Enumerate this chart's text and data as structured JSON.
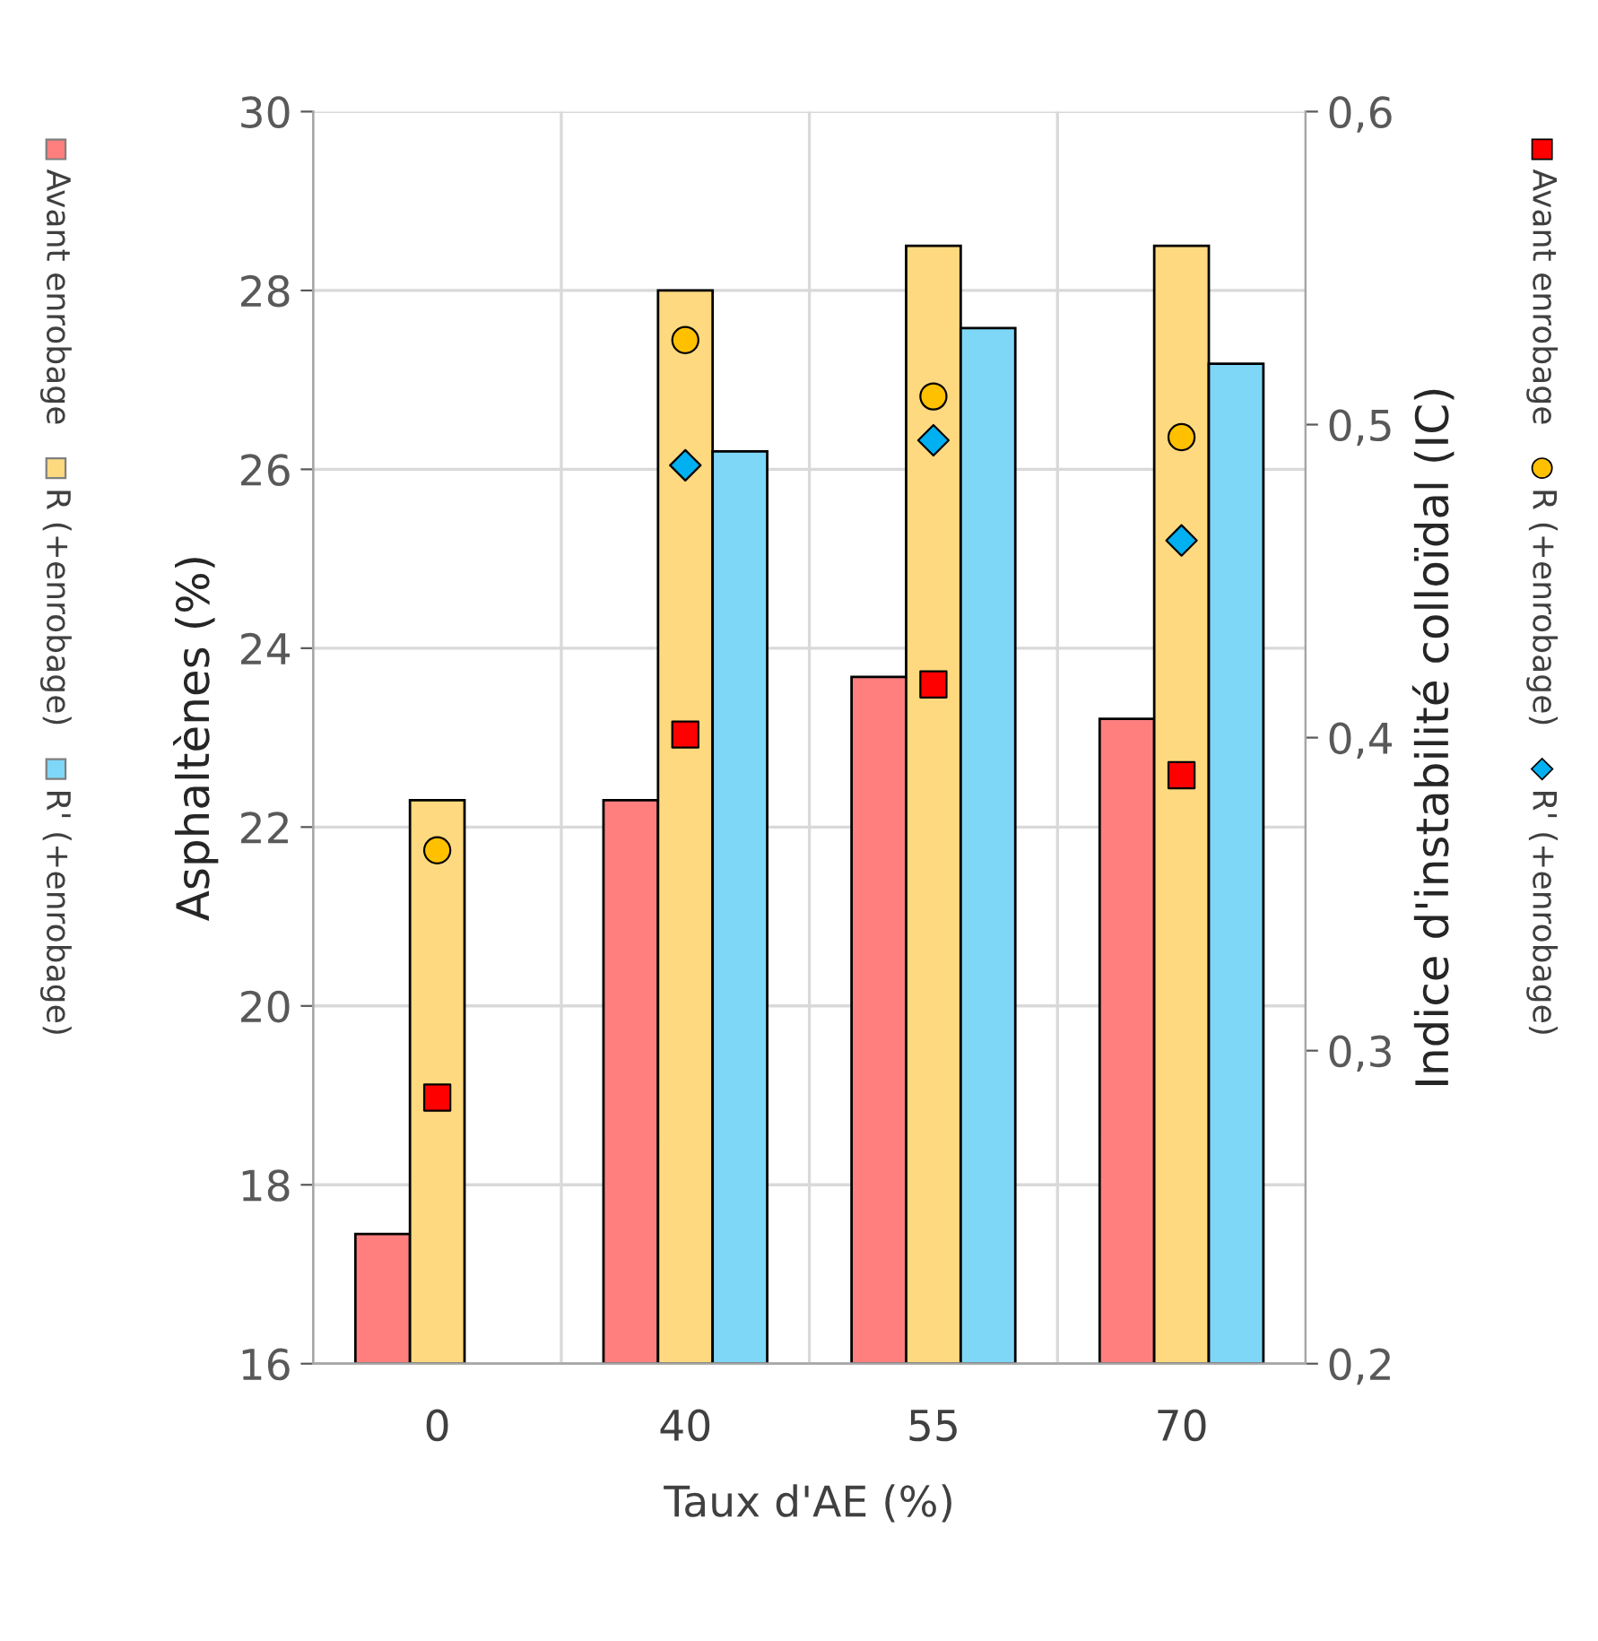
{
  "chart_data": {
    "type": "bar",
    "xlabel": "Taux d'AE (%)",
    "ylabel": "Asphaltènes (%)",
    "y2label": "Indice d'instabilité colloïdal (IC)",
    "categories": [
      "0",
      "40",
      "55",
      "70"
    ],
    "series": [
      {
        "name": "Avant enrobage",
        "color": "#ff7f7f",
        "values": [
          17.45,
          22.3,
          23.68,
          23.21
        ]
      },
      {
        "name": "R (+enrobage)",
        "color": "#ffd97f",
        "values": [
          22.3,
          28.0,
          28.5,
          28.5
        ]
      },
      {
        "name": "R' (+enrobage)",
        "color": "#7fd7f7",
        "values": [
          null,
          26.2,
          27.58,
          27.18
        ]
      },
      {
        "name": "Avant enrobage",
        "type": "scatter",
        "axis": "y2",
        "marker": "square",
        "color": "#ff0000",
        "x": [
          "0",
          "40",
          "55",
          "70"
        ],
        "values": [
          0.285,
          0.401,
          0.417,
          0.388
        ]
      },
      {
        "name": "R (+enrobage)",
        "type": "scatter",
        "axis": "y2",
        "marker": "circle",
        "color": "#ffc000",
        "x": [
          "0",
          "40",
          "55",
          "70"
        ],
        "values": [
          0.364,
          0.527,
          0.509,
          0.496
        ]
      },
      {
        "name": "R' (+enrobage)",
        "type": "scatter",
        "axis": "y2",
        "marker": "diamond",
        "color": "#00b0f0",
        "x": [
          "0",
          "40",
          "55",
          "70"
        ],
        "values": [
          null,
          0.487,
          0.495,
          0.463
        ]
      }
    ],
    "ylim": [
      16,
      30
    ],
    "yticks": [
      16,
      18,
      20,
      22,
      24,
      26,
      28,
      30
    ],
    "y2lim": [
      0.2,
      0.6
    ],
    "y2ticks": [
      {
        "value": 0.2,
        "label": "0,2"
      },
      {
        "value": 0.3,
        "label": "0,3"
      },
      {
        "value": 0.4,
        "label": "0,4"
      },
      {
        "value": 0.5,
        "label": "0,5"
      },
      {
        "value": 0.6,
        "label": "0,6"
      }
    ],
    "grid": true,
    "legend": "left"
  }
}
